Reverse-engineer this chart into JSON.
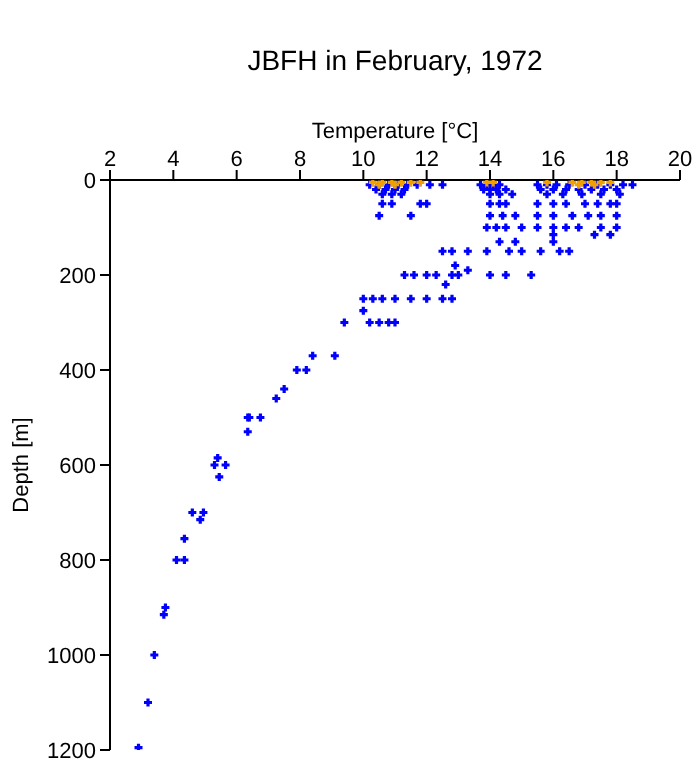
{
  "chart_data": {
    "type": "scatter",
    "title": "JBFH in February, 1972",
    "xlabel": "Temperature [°C]",
    "ylabel": "Depth [m]",
    "xlim": [
      2,
      20
    ],
    "xticks": [
      2,
      4,
      6,
      8,
      10,
      12,
      14,
      16,
      18,
      20
    ],
    "ylim": [
      1200,
      0
    ],
    "yticks": [
      0,
      200,
      400,
      600,
      800,
      1000,
      1200
    ],
    "grid": false,
    "legend": false,
    "marker": "cross",
    "series": [
      {
        "color": "#0000ff",
        "x": [
          10.2,
          10.5,
          10.8,
          11.1,
          11.4,
          11.7,
          12.1,
          12.5,
          13.7,
          13.9,
          14.1,
          14.3,
          15.5,
          15.8,
          16.1,
          16.5,
          17.0,
          17.4,
          17.8,
          18.2,
          18.5,
          10.4,
          10.7,
          11.0,
          11.3,
          13.8,
          14.0,
          14.2,
          14.5,
          15.6,
          16.0,
          16.4,
          16.8,
          17.2,
          17.6,
          18.0,
          10.6,
          10.9,
          11.2,
          14.0,
          14.3,
          14.7,
          15.8,
          16.3,
          16.9,
          17.5,
          18.1,
          10.6,
          10.9,
          11.8,
          12.0,
          14.0,
          14.3,
          14.5,
          15.5,
          16.0,
          16.4,
          17.0,
          17.4,
          17.8,
          18.0,
          10.5,
          11.5,
          14.0,
          14.4,
          14.8,
          15.5,
          16.0,
          16.6,
          17.1,
          17.5,
          18.0,
          13.9,
          14.2,
          14.5,
          15.0,
          15.5,
          16.0,
          16.4,
          16.8,
          17.5,
          18.0,
          16.0,
          17.3,
          17.8,
          14.3,
          14.8,
          16.0,
          12.5,
          12.8,
          13.3,
          13.9,
          14.6,
          15.0,
          15.6,
          16.2,
          16.5,
          12.9,
          13.3,
          11.3,
          11.6,
          12.0,
          12.3,
          12.8,
          13.0,
          14.0,
          14.5,
          15.3,
          12.6,
          10.0,
          10.3,
          10.6,
          11.0,
          11.5,
          12.0,
          12.5,
          12.8,
          10.0,
          9.4,
          10.2,
          10.5,
          10.8,
          11.0,
          8.4,
          9.1,
          7.9,
          8.2,
          7.5,
          7.25,
          6.35,
          6.4,
          6.75,
          6.35,
          5.3,
          5.65,
          5.4,
          5.45,
          4.6,
          4.95,
          4.85,
          4.35,
          4.1,
          4.35,
          3.75,
          3.7,
          3.4,
          3.2,
          2.9
        ],
        "values": [
          10,
          10,
          10,
          10,
          10,
          10,
          10,
          10,
          10,
          10,
          10,
          10,
          10,
          10,
          10,
          10,
          10,
          10,
          10,
          10,
          10,
          20,
          20,
          20,
          20,
          20,
          20,
          20,
          20,
          20,
          20,
          20,
          20,
          20,
          20,
          20,
          30,
          30,
          30,
          30,
          30,
          30,
          30,
          30,
          30,
          30,
          30,
          50,
          50,
          50,
          50,
          50,
          50,
          50,
          50,
          50,
          50,
          50,
          50,
          50,
          50,
          75,
          75,
          75,
          75,
          75,
          75,
          75,
          75,
          75,
          75,
          75,
          100,
          100,
          100,
          100,
          100,
          100,
          100,
          100,
          100,
          100,
          115,
          115,
          115,
          130,
          130,
          130,
          150,
          150,
          150,
          150,
          150,
          150,
          150,
          150,
          150,
          180,
          190,
          200,
          200,
          200,
          200,
          200,
          200,
          200,
          200,
          200,
          220,
          250,
          250,
          250,
          250,
          250,
          250,
          250,
          250,
          275,
          300,
          300,
          300,
          300,
          300,
          370,
          370,
          400,
          400,
          440,
          460,
          500,
          500,
          500,
          530,
          600,
          600,
          585,
          625,
          700,
          700,
          715,
          755,
          800,
          800,
          900,
          915,
          1000,
          1100,
          1195
        ]
      },
      {
        "color": "#f0a000",
        "x": [
          10.3,
          10.6,
          10.9,
          11.2,
          11.5,
          11.8,
          13.9,
          14.1,
          15.8,
          16.6,
          16.9,
          17.2,
          17.5,
          17.8,
          10.5,
          11.0,
          16.8,
          17.3
        ],
        "values": [
          5,
          5,
          5,
          5,
          5,
          5,
          5,
          5,
          5,
          5,
          5,
          5,
          5,
          5,
          10,
          10,
          10,
          10
        ]
      }
    ]
  }
}
